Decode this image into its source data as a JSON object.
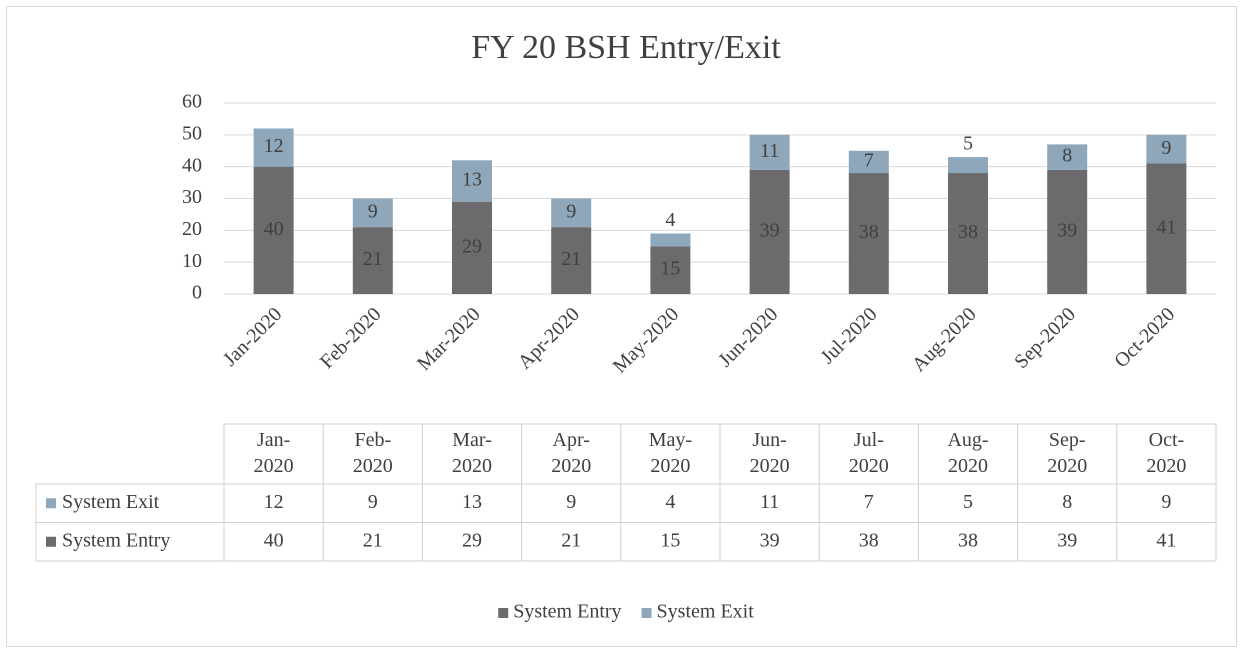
{
  "chart_data": {
    "type": "bar",
    "stacked": true,
    "title": "FY 20 BSH Entry/Exit",
    "categories": [
      "Jan-2020",
      "Feb-2020",
      "Mar-2020",
      "Apr-2020",
      "May-2020",
      "Jun-2020",
      "Jul-2020",
      "Aug-2020",
      "Sep-2020",
      "Oct-2020"
    ],
    "series": [
      {
        "name": "System Entry",
        "color": "#6b6b6d",
        "values": [
          40,
          21,
          29,
          21,
          15,
          39,
          38,
          38,
          39,
          41
        ]
      },
      {
        "name": "System Exit",
        "color": "#8fa7bb",
        "values": [
          12,
          9,
          13,
          9,
          4,
          11,
          7,
          5,
          8,
          9
        ]
      }
    ],
    "ylim": [
      0,
      60
    ],
    "yticks": [
      0,
      10,
      20,
      30,
      40,
      50,
      60
    ],
    "grid": true,
    "legend": "bottom",
    "data_table": true
  }
}
